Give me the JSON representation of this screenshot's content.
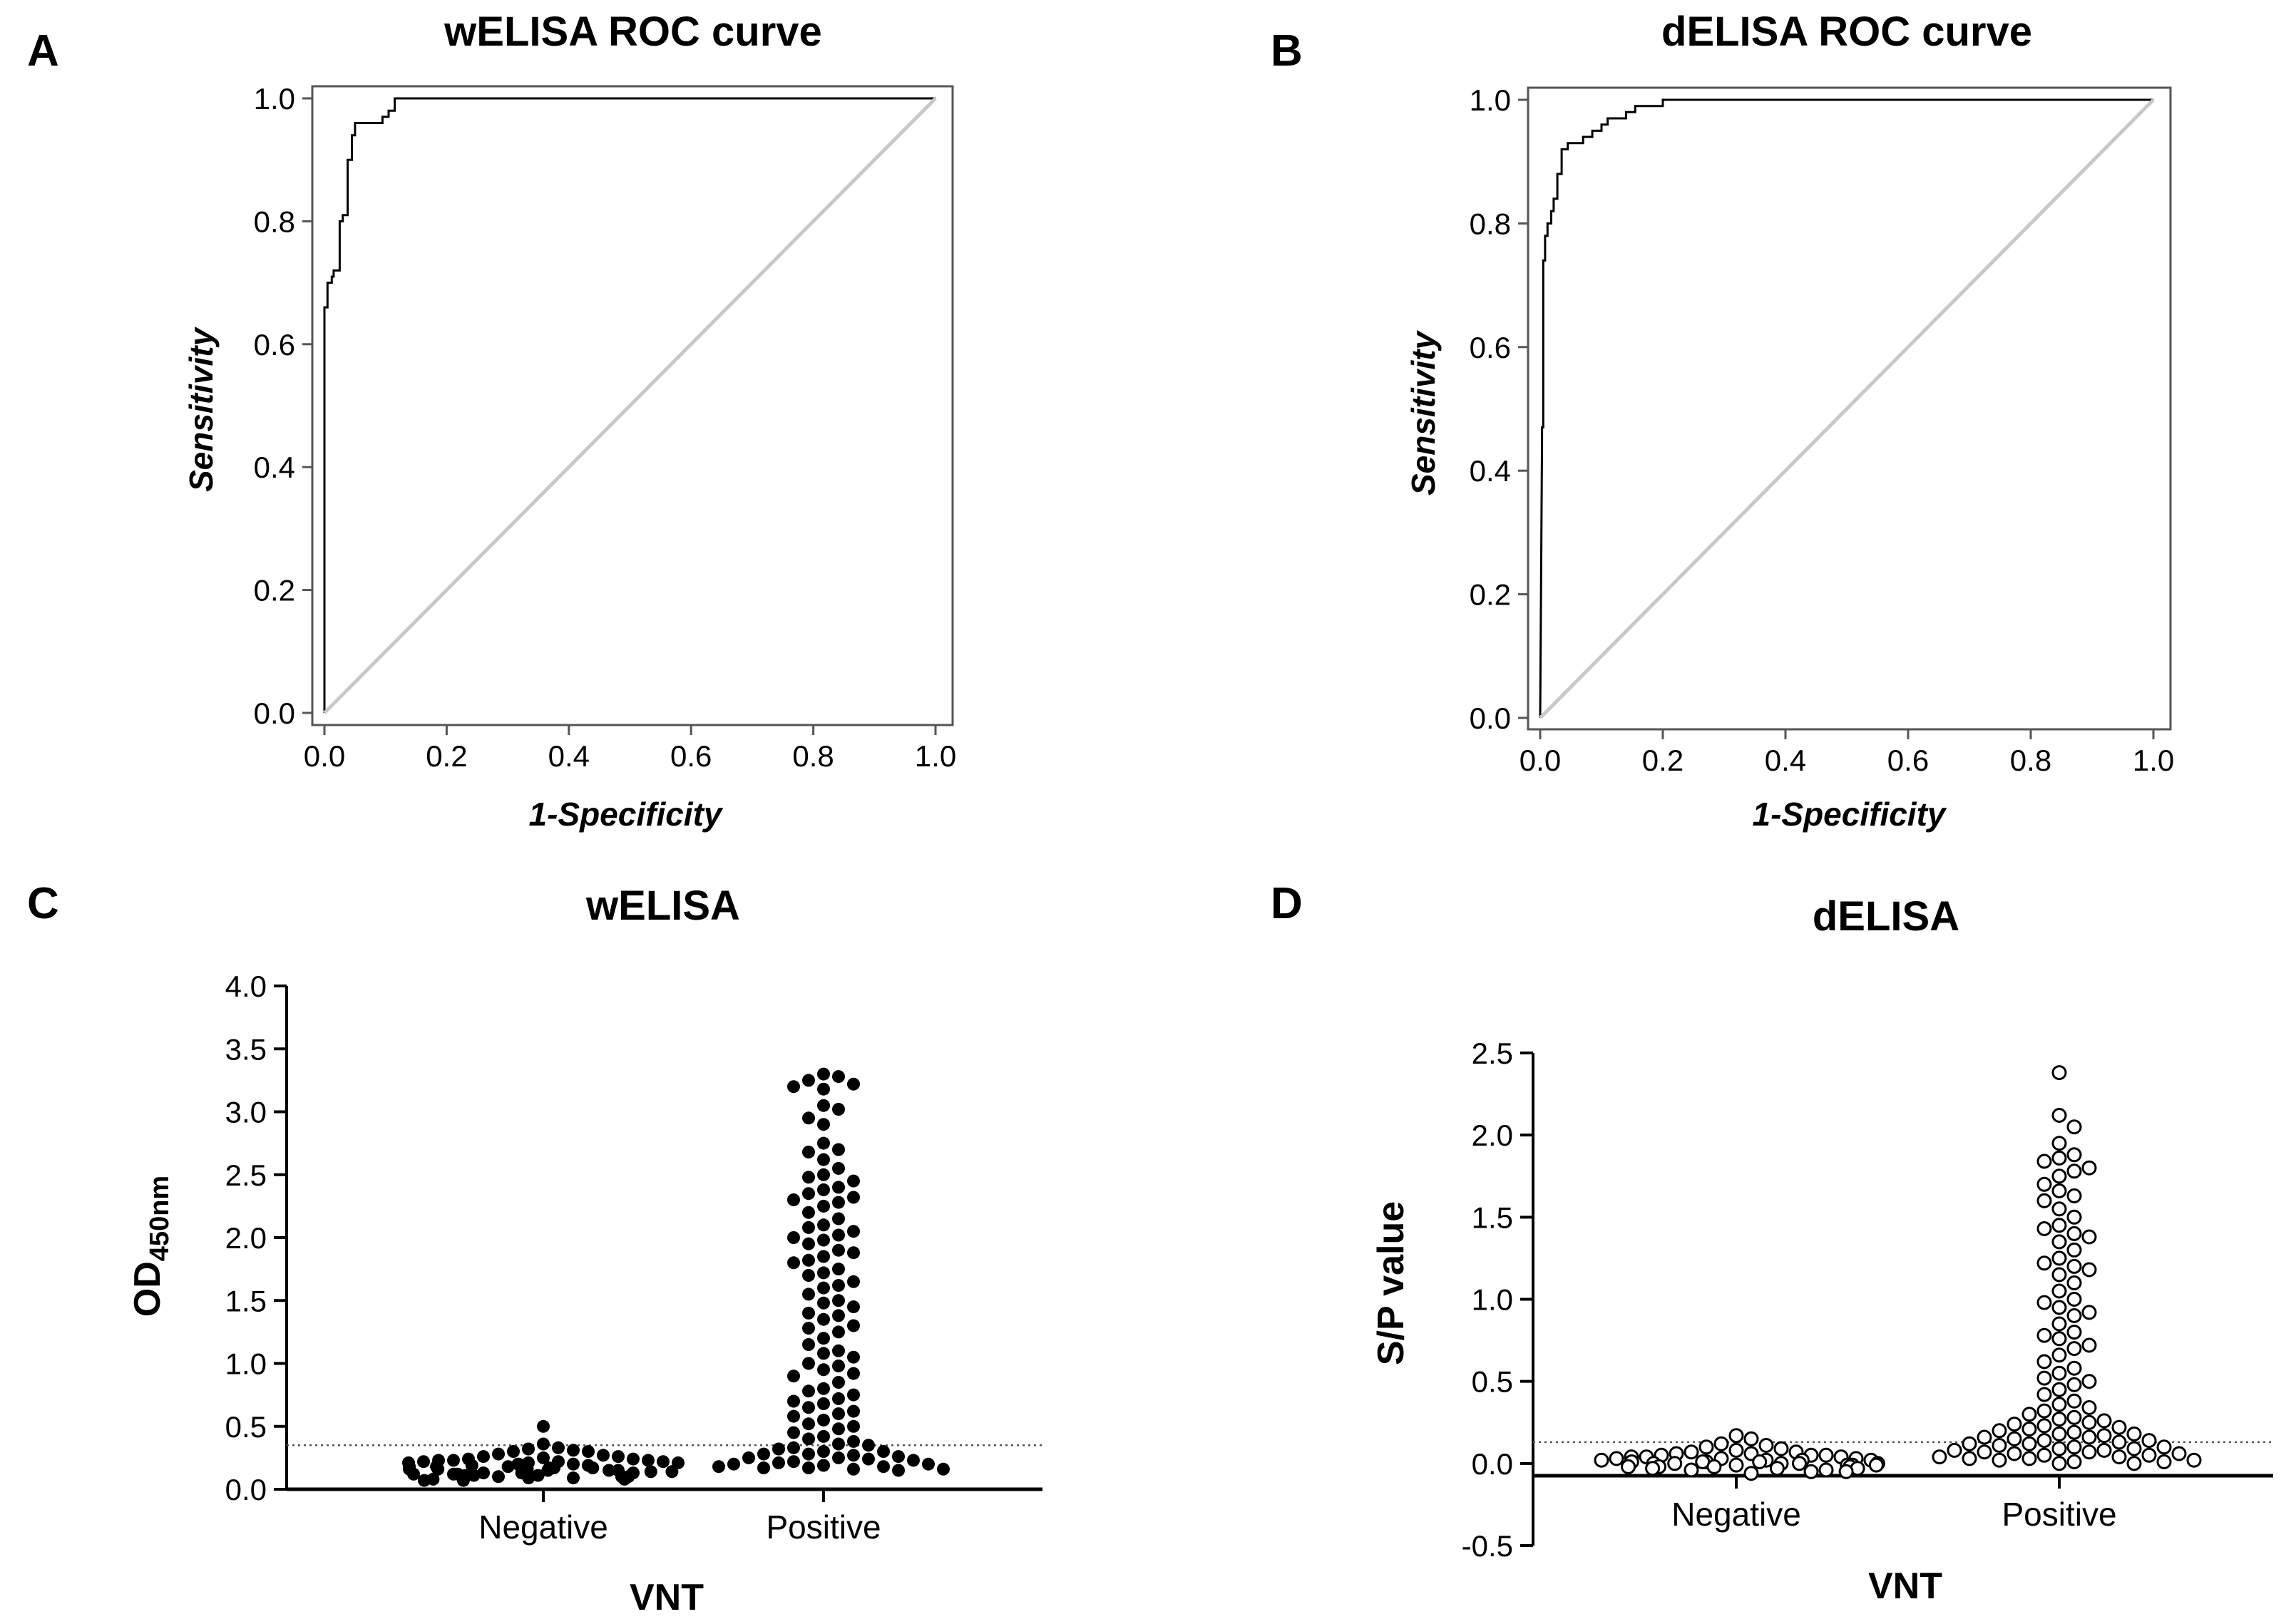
{
  "figure": {
    "panel_labels": [
      "A",
      "B",
      "C",
      "D"
    ]
  },
  "chart_data": [
    {
      "panel": "A",
      "type": "line",
      "title": "wELISA ROC curve",
      "xlabel": "1-Specificity",
      "ylabel": "Sensitivity",
      "xlim": [
        0,
        1
      ],
      "ylim": [
        0,
        1
      ],
      "xticks": [
        "0.0",
        "0.2",
        "0.4",
        "0.6",
        "0.8",
        "1.0"
      ],
      "yticks": [
        "0.0",
        "0.2",
        "0.4",
        "0.6",
        "0.8",
        "1.0"
      ],
      "series": [
        {
          "name": "ROC",
          "color": "#000000",
          "x": [
            0,
            0,
            0.005,
            0.005,
            0.012,
            0.012,
            0.015,
            0.015,
            0.025,
            0.025,
            0.03,
            0.03,
            0.038,
            0.038,
            0.045,
            0.045,
            0.05,
            0.05,
            0.095,
            0.095,
            0.105,
            0.105,
            0.115,
            0.115,
            1
          ],
          "y": [
            0,
            0.66,
            0.66,
            0.7,
            0.7,
            0.71,
            0.71,
            0.72,
            0.72,
            0.8,
            0.8,
            0.81,
            0.81,
            0.9,
            0.9,
            0.94,
            0.94,
            0.96,
            0.96,
            0.97,
            0.97,
            0.98,
            0.98,
            1.0,
            1.0
          ]
        },
        {
          "name": "Reference",
          "color": "#c8c8c8",
          "x": [
            0,
            1
          ],
          "y": [
            0,
            1
          ]
        }
      ]
    },
    {
      "panel": "B",
      "type": "line",
      "title": "dELISA ROC curve",
      "xlabel": "1-Specificity",
      "ylabel": "Sensitivity",
      "xlim": [
        0,
        1
      ],
      "ylim": [
        0,
        1
      ],
      "xticks": [
        "0.0",
        "0.2",
        "0.4",
        "0.6",
        "0.8",
        "1.0"
      ],
      "yticks": [
        "0.0",
        "0.2",
        "0.4",
        "0.6",
        "0.8",
        "1.0"
      ],
      "series": [
        {
          "name": "ROC",
          "color": "#000000",
          "x": [
            0,
            0.003,
            0.003,
            0.005,
            0.005,
            0.008,
            0.008,
            0.012,
            0.012,
            0.018,
            0.018,
            0.022,
            0.022,
            0.028,
            0.028,
            0.035,
            0.035,
            0.045,
            0.045,
            0.07,
            0.07,
            0.085,
            0.085,
            0.1,
            0.1,
            0.11,
            0.11,
            0.14,
            0.14,
            0.155,
            0.155,
            0.2,
            0.2,
            1
          ],
          "y": [
            0,
            0.45,
            0.47,
            0.47,
            0.74,
            0.74,
            0.78,
            0.78,
            0.8,
            0.8,
            0.82,
            0.82,
            0.84,
            0.84,
            0.88,
            0.88,
            0.92,
            0.92,
            0.93,
            0.93,
            0.94,
            0.94,
            0.95,
            0.95,
            0.96,
            0.96,
            0.97,
            0.97,
            0.98,
            0.98,
            0.99,
            0.99,
            1.0,
            1.0
          ]
        },
        {
          "name": "Reference",
          "color": "#c8c8c8",
          "x": [
            0,
            1
          ],
          "y": [
            0,
            1
          ]
        }
      ]
    },
    {
      "panel": "C",
      "type": "scatter",
      "title": "wELISA",
      "xlabel": "VNT",
      "ylabel": "OD450nm",
      "ylabel_main": "OD",
      "ylabel_sub": "450nm",
      "categories": [
        "Negative",
        "Positive"
      ],
      "ylim": [
        0,
        4
      ],
      "yticks": [
        "0.0",
        "0.5",
        "1.0",
        "1.5",
        "2.0",
        "2.5",
        "3.0",
        "3.5",
        "4.0"
      ],
      "cutoff": 0.35,
      "marker": "filled",
      "values": [
        [
          0.5,
          0.36,
          0.3,
          0.33,
          0.32,
          0.31,
          0.3,
          0.28,
          0.27,
          0.26,
          0.26,
          0.25,
          0.24,
          0.24,
          0.23,
          0.23,
          0.23,
          0.22,
          0.22,
          0.22,
          0.21,
          0.21,
          0.21,
          0.2,
          0.2,
          0.2,
          0.19,
          0.19,
          0.19,
          0.18,
          0.18,
          0.18,
          0.17,
          0.17,
          0.17,
          0.16,
          0.16,
          0.16,
          0.15,
          0.15,
          0.15,
          0.14,
          0.14,
          0.14,
          0.13,
          0.13,
          0.13,
          0.12,
          0.12,
          0.12,
          0.11,
          0.11,
          0.11,
          0.1,
          0.1,
          0.1,
          0.09,
          0.09,
          0.08,
          0.08,
          0.07,
          0.07
        ],
        [
          3.3,
          3.28,
          3.25,
          3.22,
          3.2,
          3.18,
          3.05,
          3.02,
          2.95,
          2.9,
          2.75,
          2.7,
          2.68,
          2.62,
          2.55,
          2.5,
          2.48,
          2.45,
          2.4,
          2.38,
          2.35,
          2.32,
          2.3,
          2.28,
          2.25,
          2.2,
          2.15,
          2.1,
          2.08,
          2.05,
          2.02,
          2.0,
          1.98,
          1.95,
          1.9,
          1.88,
          1.85,
          1.82,
          1.8,
          1.75,
          1.72,
          1.7,
          1.65,
          1.62,
          1.6,
          1.55,
          1.5,
          1.48,
          1.45,
          1.4,
          1.38,
          1.35,
          1.3,
          1.28,
          1.25,
          1.2,
          1.15,
          1.1,
          1.08,
          1.05,
          1.0,
          0.98,
          0.95,
          0.92,
          0.9,
          0.85,
          0.8,
          0.78,
          0.75,
          0.72,
          0.7,
          0.68,
          0.65,
          0.62,
          0.6,
          0.58,
          0.55,
          0.52,
          0.5,
          0.48,
          0.45,
          0.42,
          0.4,
          0.38,
          0.36,
          0.35,
          0.33,
          0.32,
          0.3,
          0.3,
          0.28,
          0.28,
          0.27,
          0.26,
          0.25,
          0.25,
          0.24,
          0.23,
          0.22,
          0.21,
          0.2,
          0.2,
          0.19,
          0.18,
          0.18,
          0.17,
          0.17,
          0.16,
          0.16,
          0.15
        ]
      ]
    },
    {
      "panel": "D",
      "type": "scatter",
      "title": "dELISA",
      "xlabel": "VNT",
      "ylabel": "S/P value",
      "categories": [
        "Negative",
        "Positive"
      ],
      "ylim": [
        -0.5,
        2.5
      ],
      "yticks": [
        "-0.5",
        "0.0",
        "0.5",
        "1.0",
        "1.5",
        "2.0",
        "2.5"
      ],
      "cutoff": 0.13,
      "marker": "open",
      "values": [
        [
          0.17,
          0.15,
          0.12,
          0.11,
          0.1,
          0.09,
          0.08,
          0.07,
          0.07,
          0.06,
          0.06,
          0.05,
          0.05,
          0.05,
          0.04,
          0.04,
          0.04,
          0.03,
          0.03,
          0.03,
          0.02,
          0.02,
          0.02,
          0.02,
          0.01,
          0.01,
          0.01,
          0.01,
          0.0,
          0.0,
          0.0,
          0.0,
          0.0,
          -0.01,
          -0.01,
          -0.01,
          -0.01,
          -0.02,
          -0.02,
          -0.02,
          -0.02,
          -0.03,
          -0.03,
          -0.03,
          -0.04,
          -0.04,
          -0.05,
          -0.05,
          -0.06
        ],
        [
          2.38,
          2.12,
          2.05,
          1.95,
          1.88,
          1.86,
          1.84,
          1.8,
          1.78,
          1.75,
          1.7,
          1.66,
          1.63,
          1.6,
          1.55,
          1.5,
          1.45,
          1.43,
          1.4,
          1.38,
          1.35,
          1.3,
          1.25,
          1.22,
          1.2,
          1.18,
          1.15,
          1.1,
          1.05,
          1.0,
          0.98,
          0.95,
          0.92,
          0.9,
          0.85,
          0.8,
          0.78,
          0.76,
          0.72,
          0.7,
          0.66,
          0.62,
          0.58,
          0.55,
          0.52,
          0.5,
          0.48,
          0.45,
          0.42,
          0.38,
          0.36,
          0.34,
          0.32,
          0.3,
          0.28,
          0.27,
          0.26,
          0.25,
          0.24,
          0.23,
          0.22,
          0.21,
          0.2,
          0.19,
          0.18,
          0.18,
          0.17,
          0.16,
          0.16,
          0.15,
          0.14,
          0.14,
          0.13,
          0.12,
          0.12,
          0.11,
          0.1,
          0.1,
          0.09,
          0.09,
          0.08,
          0.08,
          0.07,
          0.07,
          0.06,
          0.06,
          0.05,
          0.05,
          0.04,
          0.04,
          0.03,
          0.03,
          0.02,
          0.02,
          0.01,
          0.01,
          0.0,
          0.0
        ]
      ]
    }
  ]
}
